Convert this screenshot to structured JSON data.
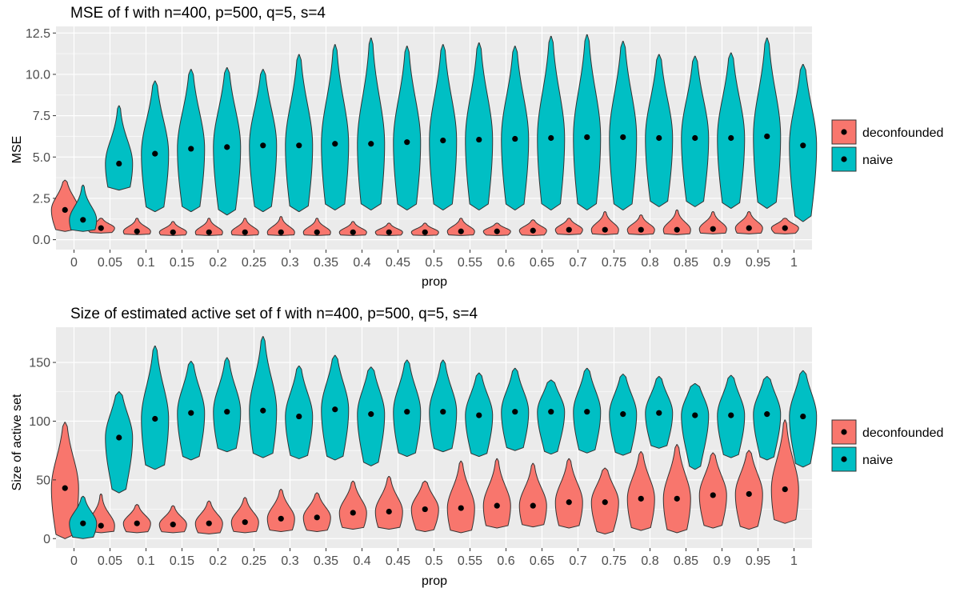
{
  "chart_data": [
    {
      "type": "violin",
      "title": "MSE of f with n=400, p=500, q=5, s=4",
      "xlabel": "prop",
      "ylabel": "MSE",
      "categories": [
        "0",
        "0.05",
        "0.1",
        "0.15",
        "0.2",
        "0.25",
        "0.3",
        "0.35",
        "0.4",
        "0.45",
        "0.5",
        "0.55",
        "0.6",
        "0.65",
        "0.7",
        "0.75",
        "0.8",
        "0.85",
        "0.9",
        "0.95",
        "1"
      ],
      "ylim": [
        -0.6,
        12.9
      ],
      "yticks": [
        0,
        2.5,
        5,
        7.5,
        10,
        12.5
      ],
      "ytick_labels": [
        "0.0",
        "2.5",
        "5.0",
        "7.5",
        "10.0",
        "12.5"
      ],
      "grid": true,
      "legend": {
        "position": "right",
        "entries": [
          "deconfounded",
          "naive"
        ]
      },
      "series": [
        {
          "name": "deconfounded",
          "color": "#F8766D",
          "means": [
            1.8,
            0.7,
            0.5,
            0.45,
            0.45,
            0.45,
            0.45,
            0.45,
            0.45,
            0.45,
            0.45,
            0.5,
            0.5,
            0.55,
            0.6,
            0.6,
            0.6,
            0.6,
            0.65,
            0.7,
            0.7
          ],
          "min": [
            0.5,
            0.4,
            0.3,
            0.25,
            0.25,
            0.25,
            0.25,
            0.25,
            0.25,
            0.25,
            0.25,
            0.25,
            0.25,
            0.25,
            0.3,
            0.3,
            0.3,
            0.3,
            0.35,
            0.35,
            0.35
          ],
          "max": [
            3.6,
            1.3,
            1.3,
            1.1,
            1.3,
            1.3,
            1.4,
            1.3,
            1.1,
            1.0,
            1.0,
            1.3,
            1.0,
            1.2,
            1.3,
            1.7,
            1.5,
            1.8,
            1.7,
            1.7,
            1.3
          ]
        },
        {
          "name": "naive",
          "color": "#00BFC4",
          "means": [
            1.2,
            4.6,
            5.2,
            5.5,
            5.6,
            5.7,
            5.7,
            5.8,
            5.8,
            5.9,
            6.0,
            6.05,
            6.1,
            6.15,
            6.2,
            6.2,
            6.15,
            6.15,
            6.15,
            6.25,
            5.7
          ],
          "min": [
            0.5,
            3.0,
            1.7,
            1.7,
            1.5,
            1.7,
            1.7,
            1.8,
            1.8,
            1.8,
            1.8,
            1.8,
            1.8,
            1.8,
            1.8,
            1.8,
            2.0,
            2.0,
            1.9,
            1.9,
            1.1
          ],
          "max": [
            3.3,
            8.1,
            9.6,
            10.3,
            10.4,
            10.3,
            11.2,
            11.8,
            12.2,
            11.7,
            11.8,
            11.9,
            11.7,
            12.3,
            12.4,
            12.0,
            11.2,
            11.1,
            11.3,
            12.2,
            10.6
          ]
        }
      ]
    },
    {
      "type": "violin",
      "title": "Size of estimated active set of f with n=400, p=500, q=5, s=4",
      "xlabel": "prop",
      "ylabel": "Size of active set",
      "categories": [
        "0",
        "0.05",
        "0.1",
        "0.15",
        "0.2",
        "0.25",
        "0.3",
        "0.35",
        "0.4",
        "0.45",
        "0.5",
        "0.55",
        "0.6",
        "0.65",
        "0.7",
        "0.75",
        "0.8",
        "0.85",
        "0.9",
        "0.95",
        "1"
      ],
      "ylim": [
        -8,
        180
      ],
      "yticks": [
        0,
        50,
        100,
        150
      ],
      "ytick_labels": [
        "0",
        "50",
        "100",
        "150"
      ],
      "grid": true,
      "legend": {
        "position": "right",
        "entries": [
          "deconfounded",
          "naive"
        ]
      },
      "series": [
        {
          "name": "deconfounded",
          "color": "#F8766D",
          "means": [
            43,
            11,
            13,
            12,
            13,
            14,
            17,
            18,
            22,
            23,
            25,
            26,
            28,
            28,
            31,
            31,
            34,
            34,
            37,
            38,
            42
          ],
          "min": [
            0,
            5,
            5,
            5,
            4,
            5,
            6,
            6,
            8,
            8,
            6,
            5,
            9,
            10,
            9,
            4,
            7,
            5,
            9,
            8,
            13
          ],
          "max": [
            99,
            38,
            29,
            28,
            32,
            35,
            42,
            39,
            49,
            53,
            49,
            66,
            68,
            64,
            68,
            60,
            74,
            80,
            73,
            75,
            101
          ]
        },
        {
          "name": "naive",
          "color": "#00BFC4",
          "means": [
            13,
            86,
            102,
            107,
            108,
            109,
            104,
            110,
            106,
            108,
            108,
            105,
            108,
            108,
            108,
            106,
            107,
            105,
            105,
            106,
            104
          ],
          "min": [
            0,
            39,
            59,
            67,
            74,
            69,
            68,
            67,
            62,
            70,
            74,
            70,
            75,
            72,
            73,
            71,
            77,
            59,
            69,
            67,
            61
          ],
          "max": [
            36,
            125,
            164,
            151,
            154,
            172,
            147,
            156,
            146,
            152,
            152,
            141,
            145,
            135,
            145,
            140,
            138,
            132,
            139,
            138,
            143
          ]
        }
      ]
    }
  ]
}
